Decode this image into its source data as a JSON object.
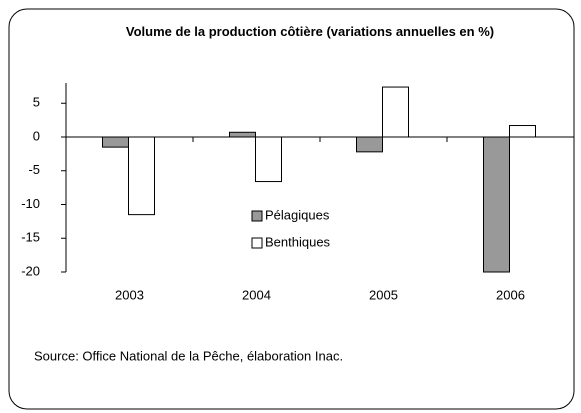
{
  "chart_data": {
    "type": "bar",
    "title": "Volume de la production côtière (variations annuelles en %)",
    "categories": [
      "2003",
      "2004",
      "2005",
      "2006"
    ],
    "series": [
      {
        "name": "Pélagiques",
        "color": "#999999",
        "values": [
          -1.5,
          0.7,
          -2.2,
          -20
        ]
      },
      {
        "name": "Benthiques",
        "color": "#ffffff",
        "values": [
          -11.5,
          -6.6,
          7.4,
          1.7
        ]
      }
    ],
    "ylim": [
      -20,
      8
    ],
    "yticks": [
      5,
      0,
      -5,
      -10,
      -15,
      -20
    ],
    "source": "Source: Office National de la Pêche, élaboration Inac."
  }
}
